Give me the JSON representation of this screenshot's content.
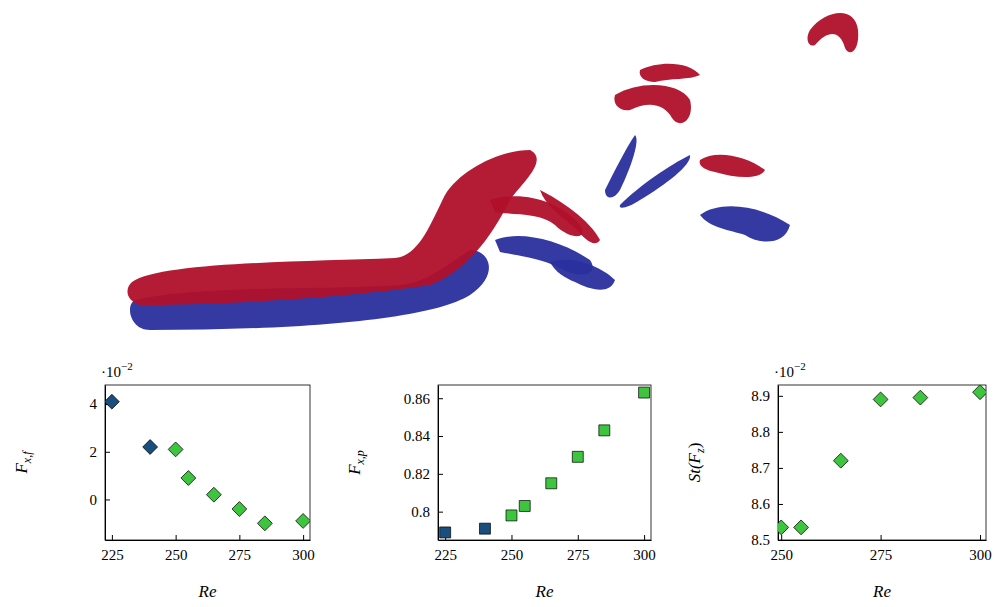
{
  "chart_data": [
    {
      "type": "scatter",
      "marker": "diamond",
      "x_label": "Re",
      "y_label": [
        {
          "text": "F"
        },
        {
          "text": "x,f",
          "sub": true
        }
      ],
      "annotations": [
        {
          "text": "·10",
          "superscript": "−2"
        }
      ],
      "x": [
        225,
        240,
        250,
        255,
        265,
        275,
        285,
        300
      ],
      "values": [
        4.1,
        2.2,
        2.1,
        0.9,
        0.2,
        -0.4,
        -1.0,
        -0.9
      ],
      "colors": [
        "#1a4e7e",
        "#1a4e7e",
        "#3ec43e",
        "#3ec43e",
        "#3ec43e",
        "#3ec43e",
        "#3ec43e",
        "#3ec43e"
      ],
      "xlim": [
        222.3,
        302.7
      ],
      "xticks": [
        225,
        250,
        275,
        300
      ],
      "ylim": [
        -1.7,
        4.8
      ],
      "yticks": [
        0,
        2,
        4
      ]
    },
    {
      "type": "scatter",
      "marker": "square",
      "x_label": "Re",
      "y_label": [
        {
          "text": "F"
        },
        {
          "text": "x,p",
          "sub": true
        }
      ],
      "x": [
        225,
        240,
        250,
        255,
        265,
        275,
        285,
        300
      ],
      "values": [
        0.789,
        0.791,
        0.798,
        0.803,
        0.815,
        0.829,
        0.843,
        0.863
      ],
      "colors": [
        "#1a4e7e",
        "#1a4e7e",
        "#3ec43e",
        "#3ec43e",
        "#3ec43e",
        "#3ec43e",
        "#3ec43e",
        "#3ec43e"
      ],
      "xlim": [
        222.3,
        302.6
      ],
      "xticks": [
        225,
        250,
        275,
        300
      ],
      "ylim": [
        0.785,
        0.867
      ],
      "yticks": [
        0.8,
        0.82,
        0.84,
        0.86
      ]
    },
    {
      "type": "scatter",
      "marker": "diamond",
      "x_label": "Re",
      "y_label": [
        {
          "text": "St(F"
        },
        {
          "text": "z",
          "sub": true
        },
        {
          "text": ")"
        }
      ],
      "annotations": [
        {
          "text": "·10",
          "superscript": "−2"
        }
      ],
      "x": [
        250,
        255,
        265,
        275,
        285,
        300
      ],
      "values": [
        8.535,
        8.535,
        8.72,
        8.89,
        8.895,
        8.91
      ],
      "colors": [
        "#3ec43e",
        "#3ec43e",
        "#3ec43e",
        "#3ec43e",
        "#3ec43e",
        "#3ec43e"
      ],
      "xlim": [
        249.2,
        301.5
      ],
      "xticks": [
        250,
        275,
        300
      ],
      "ylim": [
        8.5,
        8.93
      ],
      "yticks": [
        8.5,
        8.6,
        8.7,
        8.8,
        8.9
      ]
    }
  ]
}
